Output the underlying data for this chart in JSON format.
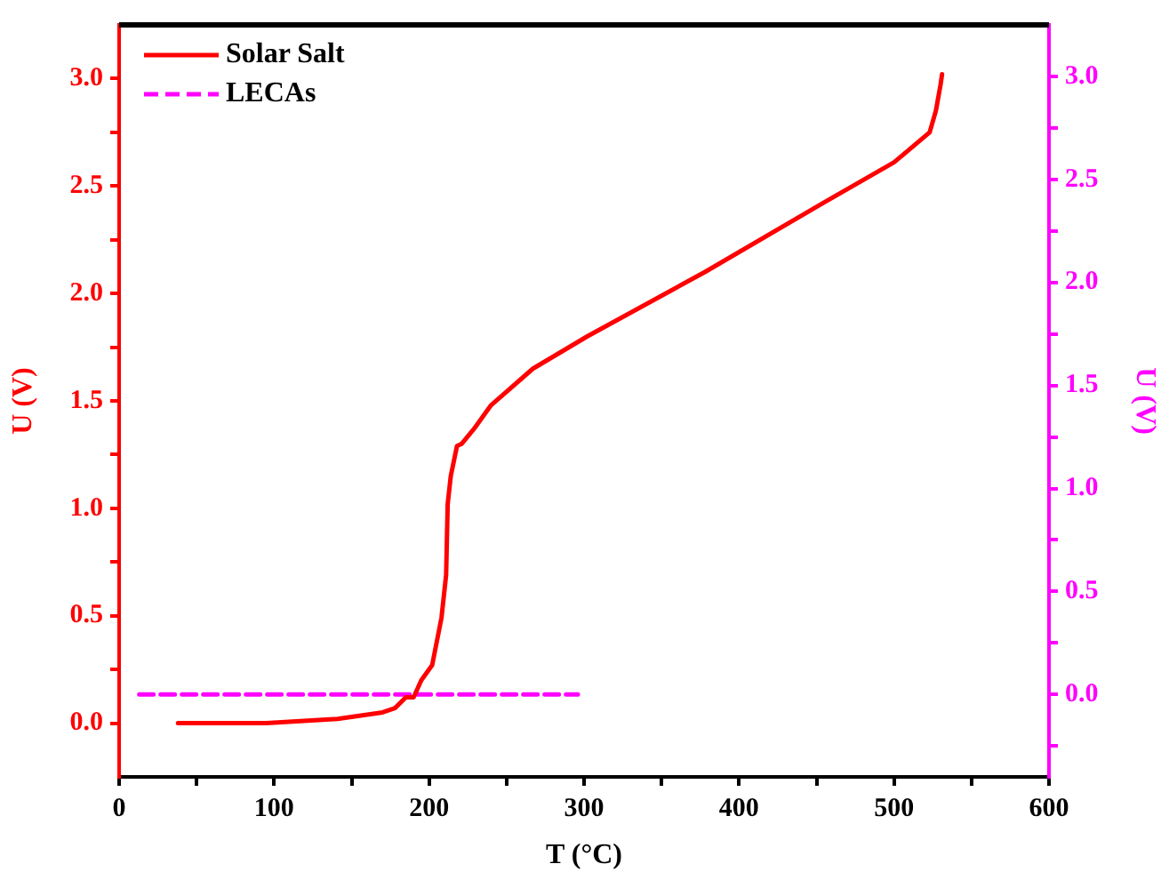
{
  "chart_data": {
    "type": "line",
    "xlabel": "T (°C)",
    "ylabel": "U (V)",
    "y2label": "U (V)",
    "xlim": [
      0,
      600
    ],
    "xticks": [
      0,
      {
        "value": 50,
        "label": null
      },
      100,
      {
        "value": 150,
        "label": null
      },
      200,
      {
        "value": 250,
        "label": null
      },
      300,
      {
        "value": 350,
        "label": null
      },
      400,
      {
        "value": 450,
        "label": null
      },
      500,
      {
        "value": 550,
        "label": null
      },
      600
    ],
    "ylim": [
      -0.25,
      3.25
    ],
    "yticks": [
      {
        "value": 0,
        "label": "0.0"
      },
      {
        "value": 0.25,
        "label": null
      },
      0.5,
      {
        "value": 0.75,
        "label": null
      },
      {
        "value": 1,
        "label": "1.0"
      },
      {
        "value": 1.25,
        "label": null
      },
      1.5,
      {
        "value": 1.75,
        "label": null
      },
      {
        "value": 2,
        "label": "2.0"
      },
      {
        "value": 2.25,
        "label": null
      },
      2.5,
      {
        "value": 2.75,
        "label": null
      },
      {
        "value": 3,
        "label": "3.0"
      }
    ],
    "y2lim": [
      -0.4,
      3.25
    ],
    "y2ticks": [
      {
        "value": -0.25,
        "label": null
      },
      {
        "value": 0,
        "label": "0.0"
      },
      {
        "value": 0.25,
        "label": null
      },
      0.5,
      {
        "value": 0.75,
        "label": null
      },
      {
        "value": 1,
        "label": "1.0"
      },
      {
        "value": 1.25,
        "label": null
      },
      1.5,
      {
        "value": 1.75,
        "label": null
      },
      {
        "value": 2,
        "label": "2.0"
      },
      {
        "value": 2.25,
        "label": null
      },
      2.5,
      {
        "value": 2.75,
        "label": null
      },
      {
        "value": 3,
        "label": "3.0"
      }
    ],
    "legend": "top left",
    "marker": "none",
    "series": [
      {
        "name": "Solar Salt",
        "color": "#ff0000",
        "line_style": "solid",
        "x": [
          38,
          60,
          95,
          141,
          170,
          178,
          185,
          190,
          195,
          202,
          208,
          211,
          212,
          214,
          218,
          221,
          229,
          240,
          267,
          302,
          378,
          454,
          500,
          523,
          527,
          530,
          531
        ],
        "values": [
          0,
          0,
          0,
          0.02,
          0.05,
          0.07,
          0.12,
          0.12,
          0.2,
          0.27,
          0.49,
          0.69,
          1.02,
          1.15,
          1.29,
          1.3,
          1.37,
          1.48,
          1.65,
          1.8,
          2.1,
          2.42,
          2.61,
          2.75,
          2.85,
          2.97,
          3.02
        ]
      },
      {
        "name": "LECAs",
        "color": "#ff00ff",
        "line_style": "dashed",
        "axis": "y2",
        "x": [
          13,
          296
        ],
        "values": [
          0,
          0
        ]
      }
    ]
  }
}
